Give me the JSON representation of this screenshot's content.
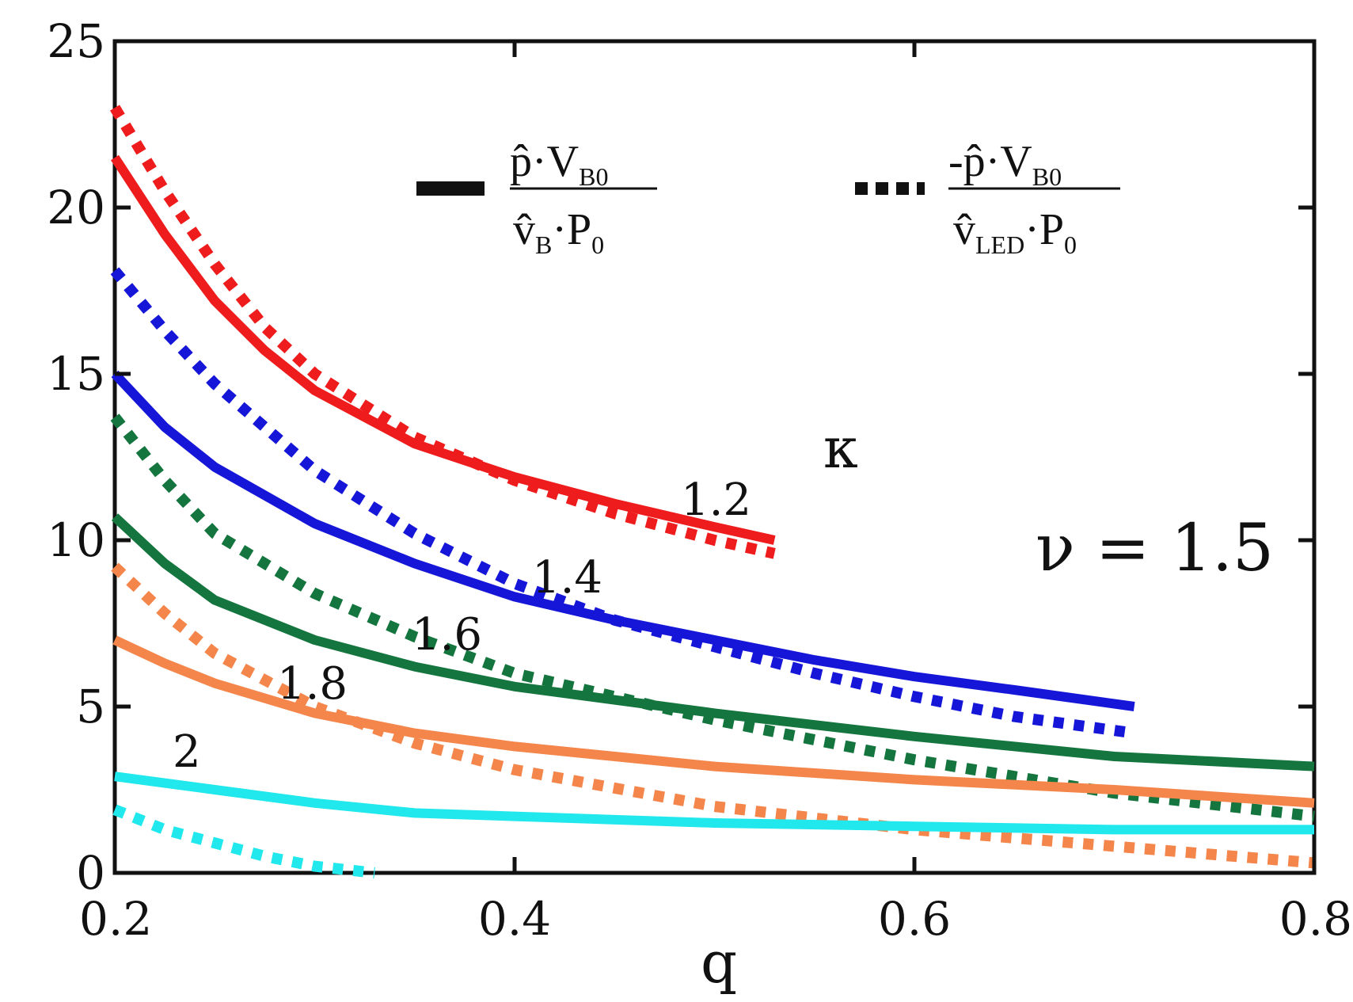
{
  "chart_data": {
    "type": "line",
    "title": "",
    "xlabel": "q",
    "ylabel": "",
    "xlim": [
      0.2,
      0.8
    ],
    "ylim": [
      0,
      25
    ],
    "xticks": [
      0.2,
      0.4,
      0.6,
      0.8
    ],
    "xtick_labels": [
      "0.2",
      "0.4",
      "0.6",
      "0.8"
    ],
    "yticks": [
      0,
      5,
      10,
      15,
      20,
      25
    ],
    "ytick_labels": [
      "0",
      "5",
      "10",
      "15",
      "20",
      "25"
    ],
    "grid": false,
    "legend_position": "top",
    "legend": [
      {
        "style": "solid",
        "numerator": {
          "main": "p̂·V",
          "sub": "B0"
        },
        "denominator": {
          "main": "v̂",
          "sub": "B",
          "tail": "·P",
          "tail_sub": "0"
        }
      },
      {
        "style": "dotted",
        "numerator": {
          "main": "-p̂·V",
          "sub": "B0"
        },
        "denominator": {
          "main": "v̂",
          "sub": "LED",
          "tail": "·P",
          "tail_sub": "0"
        }
      }
    ],
    "annotations": {
      "kappa_symbol": "κ",
      "nu_label": "ν = 1.5"
    },
    "series": [
      {
        "name": "κ = 1.2 solid",
        "kappa_label": "1.2",
        "color": "#ee1c1c",
        "style": "solid",
        "x": [
          0.2,
          0.225,
          0.25,
          0.275,
          0.3,
          0.35,
          0.4,
          0.45,
          0.5,
          0.53
        ],
        "y": [
          21.5,
          19.2,
          17.2,
          15.7,
          14.5,
          12.9,
          11.9,
          11.1,
          10.4,
          10.0
        ]
      },
      {
        "name": "κ = 1.2 dotted",
        "kappa_label": "1.2",
        "color": "#ee1c1c",
        "style": "dotted",
        "x": [
          0.2,
          0.225,
          0.25,
          0.275,
          0.3,
          0.35,
          0.4,
          0.45,
          0.5,
          0.53
        ],
        "y": [
          23.0,
          20.5,
          18.3,
          16.4,
          15.0,
          13.1,
          11.8,
          10.8,
          10.0,
          9.6
        ]
      },
      {
        "name": "κ = 1.4 solid",
        "kappa_label": "1.4",
        "color": "#1616d8",
        "style": "solid",
        "x": [
          0.2,
          0.225,
          0.25,
          0.3,
          0.35,
          0.4,
          0.45,
          0.5,
          0.55,
          0.6,
          0.65,
          0.71
        ],
        "y": [
          15.0,
          13.4,
          12.2,
          10.5,
          9.3,
          8.3,
          7.6,
          7.0,
          6.4,
          5.9,
          5.5,
          5.0
        ]
      },
      {
        "name": "κ = 1.4 dotted",
        "kappa_label": "1.4",
        "color": "#1616d8",
        "style": "dotted",
        "x": [
          0.2,
          0.225,
          0.25,
          0.3,
          0.35,
          0.4,
          0.45,
          0.5,
          0.55,
          0.6,
          0.65,
          0.71
        ],
        "y": [
          18.1,
          16.3,
          14.7,
          12.1,
          10.2,
          8.7,
          7.6,
          6.8,
          6.0,
          5.3,
          4.7,
          4.2
        ]
      },
      {
        "name": "κ = 1.6 solid",
        "kappa_label": "1.6",
        "color": "#15753e",
        "style": "solid",
        "x": [
          0.2,
          0.225,
          0.25,
          0.3,
          0.35,
          0.4,
          0.5,
          0.6,
          0.7,
          0.8
        ],
        "y": [
          10.7,
          9.3,
          8.2,
          7.0,
          6.2,
          5.6,
          4.8,
          4.1,
          3.5,
          3.2
        ]
      },
      {
        "name": "κ = 1.6 dotted",
        "kappa_label": "1.6",
        "color": "#15753e",
        "style": "dotted",
        "x": [
          0.2,
          0.225,
          0.25,
          0.3,
          0.35,
          0.4,
          0.5,
          0.6,
          0.7,
          0.8
        ],
        "y": [
          13.7,
          11.8,
          10.2,
          8.4,
          7.1,
          6.0,
          4.6,
          3.4,
          2.4,
          1.7
        ]
      },
      {
        "name": "κ = 1.8 solid",
        "kappa_label": "1.8",
        "color": "#f4864b",
        "style": "solid",
        "x": [
          0.2,
          0.225,
          0.25,
          0.3,
          0.35,
          0.4,
          0.5,
          0.6,
          0.7,
          0.8
        ],
        "y": [
          7.0,
          6.3,
          5.7,
          4.8,
          4.2,
          3.8,
          3.2,
          2.8,
          2.5,
          2.1
        ]
      },
      {
        "name": "κ = 1.8 dotted",
        "kappa_label": "1.8",
        "color": "#f4864b",
        "style": "dotted",
        "x": [
          0.2,
          0.225,
          0.25,
          0.3,
          0.35,
          0.4,
          0.5,
          0.6,
          0.7,
          0.8
        ],
        "y": [
          9.2,
          7.8,
          6.6,
          5.0,
          3.9,
          3.1,
          2.0,
          1.3,
          0.8,
          0.3
        ]
      },
      {
        "name": "κ = 2 solid",
        "kappa_label": "2",
        "color": "#20e8ec",
        "style": "solid",
        "x": [
          0.2,
          0.25,
          0.3,
          0.35,
          0.4,
          0.5,
          0.6,
          0.7,
          0.8
        ],
        "y": [
          2.9,
          2.5,
          2.1,
          1.8,
          1.7,
          1.5,
          1.4,
          1.3,
          1.3
        ]
      },
      {
        "name": "κ = 2 dotted",
        "kappa_label": "2",
        "color": "#20e8ec",
        "style": "dotted",
        "x": [
          0.2,
          0.225,
          0.25,
          0.275,
          0.3,
          0.33
        ],
        "y": [
          1.9,
          1.3,
          0.9,
          0.5,
          0.2,
          0.0
        ]
      }
    ]
  }
}
